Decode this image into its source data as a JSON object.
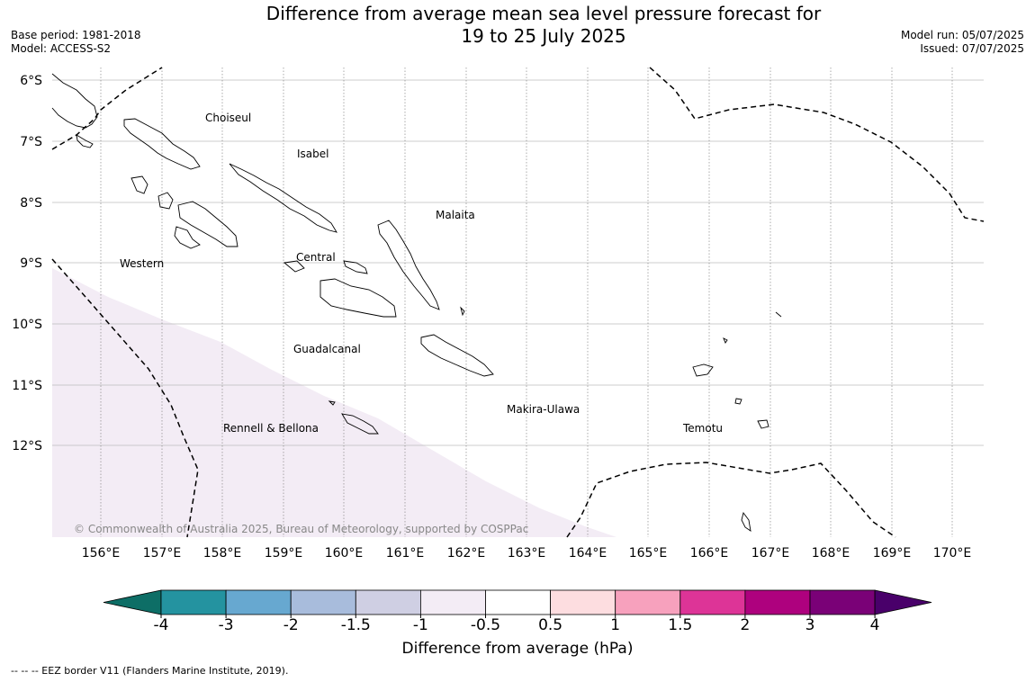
{
  "header": {
    "title_line1": "Difference from average mean sea level pressure forecast for",
    "title_line2": "19 to 25 July 2025",
    "base_period": "Base period: 1981-2018",
    "model": "Model: ACCESS-S2",
    "model_run": "Model run: 05/07/2025",
    "issued": "Issued: 07/07/2025"
  },
  "map": {
    "lat_labels": [
      "6°S",
      "7°S",
      "8°S",
      "9°S",
      "10°S",
      "11°S",
      "12°S"
    ],
    "lon_labels": [
      "156°E",
      "157°E",
      "158°E",
      "159°E",
      "160°E",
      "161°E",
      "162°E",
      "163°E",
      "164°E",
      "165°E",
      "166°E",
      "167°E",
      "168°E",
      "169°E",
      "170°E"
    ],
    "regions": [
      "Choiseul",
      "Isabel",
      "Malaita",
      "Western",
      "Central",
      "Guadalcanal",
      "Makira-Ulawa",
      "Rennell & Bellona",
      "Temotu"
    ],
    "copyright": "© Commonwealth of Australia 2025, Bureau of Meteorology, supported by COSPPac",
    "shaded_category": "-1 to -0.5",
    "shaded_color": "#f3ecf5"
  },
  "colorbar": {
    "ticks": [
      "-4",
      "-3",
      "-2",
      "-1.5",
      "-1",
      "-0.5",
      "0.5",
      "1",
      "1.5",
      "2",
      "3",
      "4"
    ],
    "colors": [
      "#0d6e66",
      "#2493a0",
      "#67a8d0",
      "#a8bcdc",
      "#cfcfe3",
      "#f3ecf5",
      "#ffffff",
      "#fddde0",
      "#f7a1bd",
      "#dd3497",
      "#ae017e",
      "#7a0177",
      "#49006a"
    ],
    "label": "Difference from average (hPa)"
  },
  "legend": {
    "eez": "--  --  -- EEZ border V11 (Flanders Marine Institute, 2019)."
  }
}
